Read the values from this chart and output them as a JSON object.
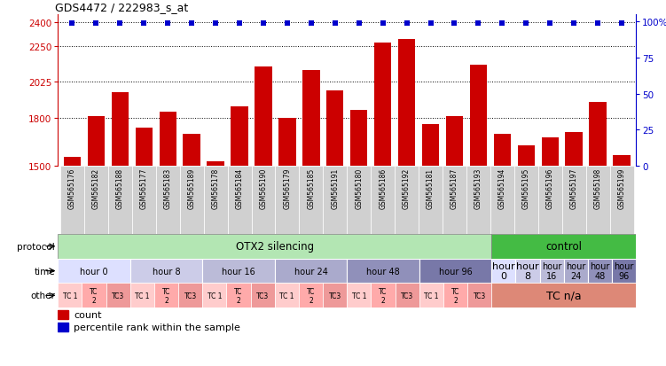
{
  "title": "GDS4472 / 222983_s_at",
  "samples": [
    "GSM565176",
    "GSM565182",
    "GSM565188",
    "GSM565177",
    "GSM565183",
    "GSM565189",
    "GSM565178",
    "GSM565184",
    "GSM565190",
    "GSM565179",
    "GSM565185",
    "GSM565191",
    "GSM565180",
    "GSM565186",
    "GSM565192",
    "GSM565181",
    "GSM565187",
    "GSM565193",
    "GSM565194",
    "GSM565195",
    "GSM565196",
    "GSM565197",
    "GSM565198",
    "GSM565199"
  ],
  "counts": [
    1560,
    1810,
    1960,
    1740,
    1840,
    1700,
    1530,
    1870,
    2120,
    1800,
    2100,
    1970,
    1850,
    2270,
    2290,
    1760,
    1810,
    2130,
    1700,
    1630,
    1680,
    1710,
    1900,
    1570
  ],
  "bar_color": "#cc0000",
  "dot_color": "#0000cc",
  "ylim_left": [
    1500,
    2450
  ],
  "ylim_right": [
    0,
    105
  ],
  "yticks_left": [
    1500,
    1800,
    2025,
    2250,
    2400
  ],
  "yticks_right": [
    0,
    25,
    50,
    75,
    100
  ],
  "label_color_left": "#cc0000",
  "label_color_right": "#0000cc",
  "protocol_otx2_color": "#b3e6b3",
  "protocol_control_color": "#44bb44",
  "time_colors_main": [
    "#e0e0ff",
    "#ccccee",
    "#bbbbdd",
    "#aaaacc",
    "#9090bb",
    "#7878aa"
  ],
  "time_colors_ctrl": [
    "#d8d8ff",
    "#c5c5f0",
    "#aeaee0",
    "#9898d0",
    "#8484c0",
    "#7070b0"
  ],
  "tc_colors": [
    "#ffcccc",
    "#ffaaaa",
    "#ee9999"
  ],
  "tc_na_color": "#dd8877",
  "xticklabel_bg": "#d0d0d0"
}
